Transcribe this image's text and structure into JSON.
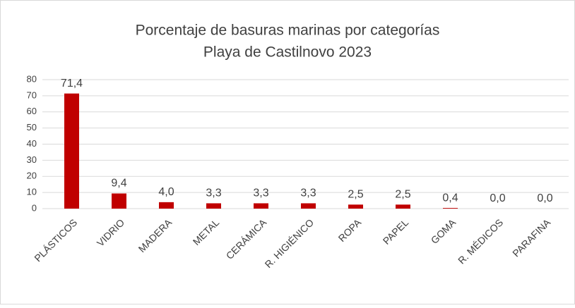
{
  "chart_data": {
    "type": "bar",
    "title": "Porcentaje de basuras marinas por categorías",
    "subtitle": "Playa de Castilnovo 2023",
    "categories": [
      "PLÁSTICOS",
      "VIDRIO",
      "MADERA",
      "METAL",
      "CERÁMICA",
      "R. HIGIÉNICO",
      "ROPA",
      "PAPEL",
      "GOMA",
      "R. MÉDICOS",
      "PARAFINA"
    ],
    "values": [
      71.4,
      9.4,
      4.0,
      3.3,
      3.3,
      3.3,
      2.5,
      2.5,
      0.4,
      0.0,
      0.0
    ],
    "value_labels": [
      "71,4",
      "9,4",
      "4,0",
      "3,3",
      "3,3",
      "3,3",
      "2,5",
      "2,5",
      "0,4",
      "0,0",
      "0,0"
    ],
    "color": "#c00000",
    "ylim": [
      0,
      80
    ],
    "yticks": [
      0,
      10,
      20,
      30,
      40,
      50,
      60,
      70,
      80
    ],
    "grid": true
  }
}
